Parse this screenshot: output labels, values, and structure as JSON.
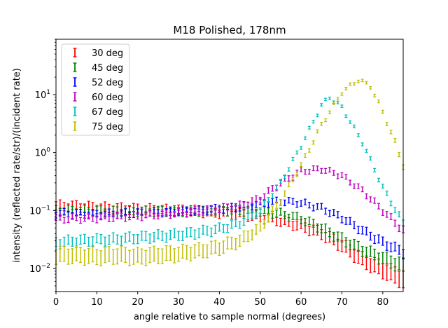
{
  "chart_data": {
    "type": "scatter",
    "title": "M18 Polished, 178nm",
    "xlabel": "angle relative to sample normal (degrees)",
    "ylabel": "intensity (reflected rate/str)/(incident rate)",
    "xlim": [
      0,
      85
    ],
    "ylim": [
      0.004,
      90
    ],
    "yscale": "log",
    "grid": false,
    "legend_position": "top-left",
    "x_ticks": [
      "0",
      "10",
      "20",
      "30",
      "40",
      "50",
      "60",
      "70",
      "80"
    ],
    "y_ticks": [
      {
        "value": 0.01,
        "base": "10",
        "exp": "−2"
      },
      {
        "value": 0.1,
        "base": "10",
        "exp": "−1"
      },
      {
        "value": 1,
        "base": "10",
        "exp": "0"
      },
      {
        "value": 10,
        "base": "10",
        "exp": "1"
      }
    ],
    "series": [
      {
        "name": "30 deg",
        "color": "#ff0000",
        "points": [
          [
            0,
            0.12
          ],
          [
            5,
            0.118
          ],
          [
            10,
            0.112
          ],
          [
            15,
            0.108
          ],
          [
            20,
            0.105
          ],
          [
            25,
            0.102
          ],
          [
            30,
            0.1
          ],
          [
            35,
            0.097
          ],
          [
            40,
            0.092
          ],
          [
            45,
            0.086
          ],
          [
            50,
            0.077
          ],
          [
            55,
            0.066
          ],
          [
            60,
            0.054
          ],
          [
            65,
            0.04
          ],
          [
            70,
            0.025
          ],
          [
            75,
            0.014
          ],
          [
            80,
            0.0095
          ],
          [
            85,
            0.0065
          ]
        ],
        "err": [
          0.18,
          0.18,
          0.18,
          0.18,
          0.18,
          0.18,
          0.18,
          0.18,
          0.18,
          0.18,
          0.18,
          0.18,
          0.2,
          0.22,
          0.25,
          0.3,
          0.35,
          0.4
        ]
      },
      {
        "name": "45 deg",
        "color": "#008000",
        "points": [
          [
            0,
            0.1
          ],
          [
            5,
            0.1
          ],
          [
            10,
            0.098
          ],
          [
            15,
            0.097
          ],
          [
            20,
            0.097
          ],
          [
            25,
            0.097
          ],
          [
            30,
            0.097
          ],
          [
            35,
            0.098
          ],
          [
            40,
            0.1
          ],
          [
            45,
            0.1
          ],
          [
            50,
            0.097
          ],
          [
            55,
            0.088
          ],
          [
            60,
            0.072
          ],
          [
            65,
            0.05
          ],
          [
            70,
            0.032
          ],
          [
            75,
            0.021
          ],
          [
            80,
            0.015
          ],
          [
            85,
            0.011
          ]
        ],
        "err": [
          0.15,
          0.15,
          0.15,
          0.15,
          0.15,
          0.15,
          0.15,
          0.15,
          0.15,
          0.15,
          0.15,
          0.15,
          0.15,
          0.18,
          0.2,
          0.22,
          0.25,
          0.3
        ]
      },
      {
        "name": "52 deg",
        "color": "#0000ff",
        "points": [
          [
            0,
            0.09
          ],
          [
            5,
            0.088
          ],
          [
            10,
            0.087
          ],
          [
            15,
            0.088
          ],
          [
            20,
            0.09
          ],
          [
            25,
            0.093
          ],
          [
            30,
            0.097
          ],
          [
            35,
            0.1
          ],
          [
            40,
            0.107
          ],
          [
            45,
            0.115
          ],
          [
            50,
            0.13
          ],
          [
            55,
            0.145
          ],
          [
            60,
            0.135
          ],
          [
            65,
            0.11
          ],
          [
            70,
            0.075
          ],
          [
            75,
            0.045
          ],
          [
            80,
            0.028
          ],
          [
            85,
            0.019
          ]
        ],
        "err": [
          0.12,
          0.12,
          0.12,
          0.12,
          0.12,
          0.12,
          0.12,
          0.12,
          0.12,
          0.12,
          0.12,
          0.12,
          0.12,
          0.12,
          0.14,
          0.16,
          0.18,
          0.2
        ]
      },
      {
        "name": "60 deg",
        "color": "#bf00bf",
        "points": [
          [
            0,
            0.072
          ],
          [
            5,
            0.073
          ],
          [
            10,
            0.074
          ],
          [
            15,
            0.077
          ],
          [
            20,
            0.08
          ],
          [
            25,
            0.085
          ],
          [
            30,
            0.09
          ],
          [
            35,
            0.098
          ],
          [
            40,
            0.107
          ],
          [
            45,
            0.12
          ],
          [
            50,
            0.16
          ],
          [
            55,
            0.3
          ],
          [
            60,
            0.48
          ],
          [
            65,
            0.52
          ],
          [
            70,
            0.4
          ],
          [
            75,
            0.22
          ],
          [
            80,
            0.1
          ],
          [
            85,
            0.045
          ]
        ],
        "err": [
          0.12,
          0.12,
          0.12,
          0.12,
          0.12,
          0.12,
          0.12,
          0.12,
          0.12,
          0.12,
          0.12,
          0.12,
          0.1,
          0.1,
          0.1,
          0.1,
          0.12,
          0.14
        ]
      },
      {
        "name": "67 deg",
        "color": "#00bfbf",
        "points": [
          [
            0,
            0.028
          ],
          [
            5,
            0.03
          ],
          [
            10,
            0.031
          ],
          [
            15,
            0.032
          ],
          [
            20,
            0.034
          ],
          [
            25,
            0.036
          ],
          [
            30,
            0.038
          ],
          [
            35,
            0.042
          ],
          [
            40,
            0.048
          ],
          [
            45,
            0.06
          ],
          [
            50,
            0.1
          ],
          [
            55,
            0.3
          ],
          [
            60,
            1.3
          ],
          [
            65,
            6.5
          ],
          [
            67,
            9.0
          ],
          [
            70,
            6.0
          ],
          [
            75,
            1.5
          ],
          [
            80,
            0.25
          ],
          [
            85,
            0.06
          ]
        ],
        "err": [
          0.2,
          0.2,
          0.2,
          0.2,
          0.2,
          0.2,
          0.2,
          0.2,
          0.18,
          0.15,
          0.12,
          0.08,
          0.06,
          0.05,
          0.05,
          0.05,
          0.06,
          0.08,
          0.12
        ]
      },
      {
        "name": "75 deg",
        "color": "#bfbf00",
        "points": [
          [
            0,
            0.017
          ],
          [
            5,
            0.017
          ],
          [
            10,
            0.016
          ],
          [
            15,
            0.017
          ],
          [
            20,
            0.016
          ],
          [
            25,
            0.017
          ],
          [
            30,
            0.018
          ],
          [
            35,
            0.02
          ],
          [
            40,
            0.023
          ],
          [
            45,
            0.03
          ],
          [
            50,
            0.05
          ],
          [
            55,
            0.15
          ],
          [
            60,
            0.6
          ],
          [
            65,
            3.0
          ],
          [
            70,
            11.0
          ],
          [
            74,
            18.0
          ],
          [
            77,
            14.0
          ],
          [
            80,
            5.0
          ],
          [
            83,
            1.5
          ],
          [
            85,
            0.6
          ]
        ],
        "err": [
          0.35,
          0.35,
          0.35,
          0.35,
          0.35,
          0.35,
          0.32,
          0.3,
          0.28,
          0.25,
          0.2,
          0.12,
          0.08,
          0.06,
          0.05,
          0.05,
          0.05,
          0.06,
          0.08,
          0.1
        ]
      }
    ]
  }
}
